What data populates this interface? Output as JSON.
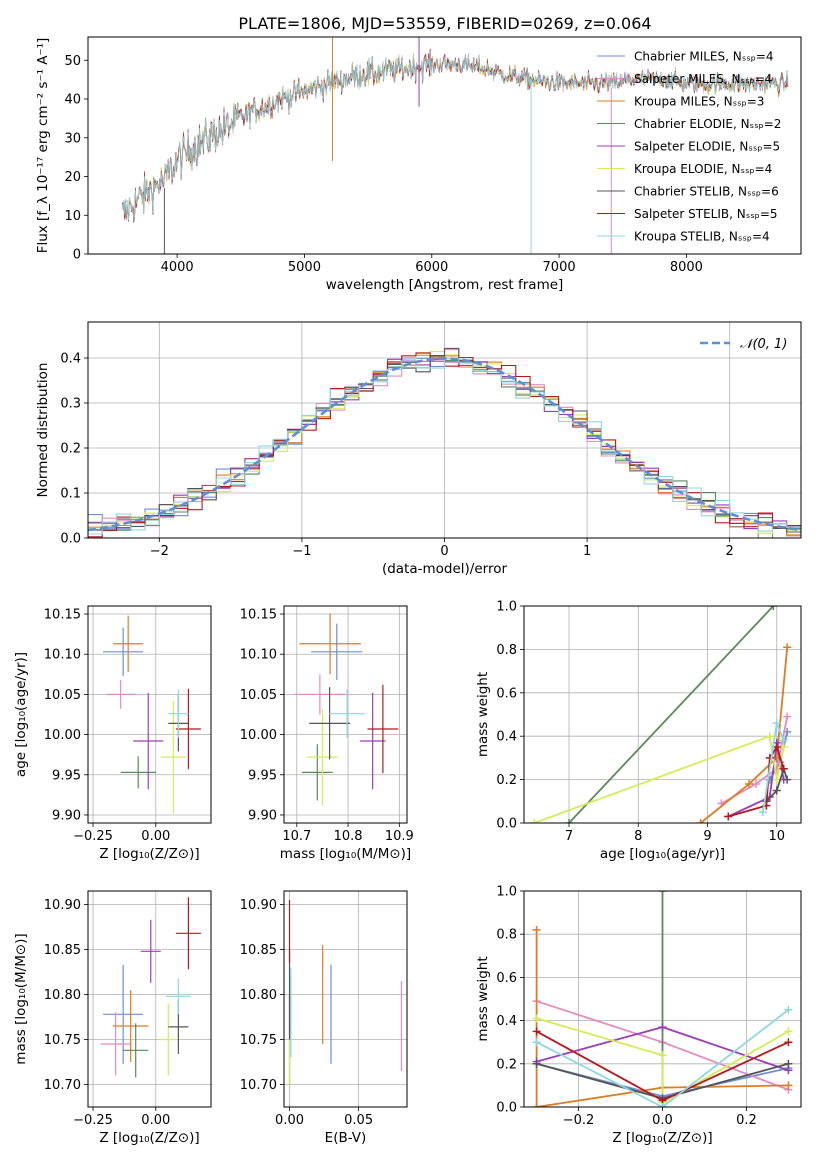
{
  "figure": {
    "title": "PLATE=1806, MJD=53559, FIBERID=0269, z=0.064"
  },
  "colors": {
    "series": [
      "#6b8fd6",
      "#e58bc3",
      "#e07b22",
      "#5a8a5a",
      "#9a3fb8",
      "#d4ec57",
      "#555555",
      "#b5181f",
      "#8dd8e0"
    ],
    "normal": "#5b8fd8",
    "grid": "#b0b0b0"
  },
  "chart_data": [
    {
      "id": "spectrum",
      "type": "line",
      "title": "PLATE=1806, MJD=53559, FIBERID=0269, z=0.064",
      "xlabel": "wavelength [Angstrom, rest frame]",
      "ylabel": "Flux [f_λ 10⁻¹⁷ erg cm⁻² s⁻¹ A⁻¹]",
      "xlim": [
        3300,
        8900
      ],
      "ylim": [
        0,
        56
      ],
      "xticks": [
        4000,
        5000,
        6000,
        7000,
        8000
      ],
      "yticks": [
        0,
        10,
        20,
        30,
        40,
        50
      ],
      "grid": false,
      "legend_position": "top-right",
      "legend": [
        "Chabrier MILES, N_SSP=4",
        "Salpeter MILES, N_SSP=4",
        "Kroupa MILES, N_SSP=3",
        "Chabrier ELODIE, N_SSP=2",
        "Salpeter ELODIE, N_SSP=5",
        "Kroupa ELODIE, N_SSP=4",
        "Chabrier STELIB, N_SSP=6",
        "Salpeter STELIB, N_SSP=5",
        "Kroupa STELIB, N_SSP=4"
      ],
      "continuum": {
        "x": [
          3570,
          3700,
          3800,
          3900,
          4000,
          4100,
          4200,
          4300,
          4400,
          4500,
          4600,
          4700,
          4800,
          4900,
          5000,
          5200,
          5400,
          5600,
          5800,
          6000,
          6200,
          6400,
          6600,
          6800,
          7000,
          7200,
          7400,
          7600,
          7800,
          8000,
          8200,
          8400,
          8600,
          8800
        ],
        "y": [
          10,
          14,
          17,
          19,
          24,
          27,
          29,
          31,
          33,
          35,
          37,
          38,
          40,
          41,
          42,
          44,
          46,
          47,
          48,
          49,
          49,
          48,
          46,
          45,
          44,
          44,
          44,
          45,
          45,
          44,
          44,
          44,
          44,
          44
        ]
      },
      "spikes": [
        {
          "x": 5220,
          "ylow": 24,
          "yhigh": 56
        },
        {
          "x": 5900,
          "ylow": 38,
          "yhigh": 56
        },
        {
          "x": 3900,
          "ylow": 0,
          "yhigh": 17
        },
        {
          "x": 6780,
          "ylow": 0,
          "yhigh": 45
        },
        {
          "x": 7410,
          "ylow": 0,
          "yhigh": 43
        }
      ]
    },
    {
      "id": "residuals",
      "type": "line",
      "xlabel": "(data-model)/error",
      "ylabel": "Normed distribution",
      "xlim": [
        -2.5,
        2.5
      ],
      "ylim": [
        0,
        0.48
      ],
      "xticks": [
        -2,
        -1,
        0,
        1,
        2
      ],
      "yticks": [
        0.0,
        0.1,
        0.2,
        0.3,
        0.4
      ],
      "grid": true,
      "legend_position": "top-right",
      "legend": [
        "𝒩(0, 1)"
      ],
      "bin_width": 0.1
    },
    {
      "id": "age-vs-Z",
      "type": "scatter",
      "xlabel": "Z [log₁₀(Z/Z⊙)]",
      "ylabel": "age  [log₁₀(age/yr)]",
      "xlim": [
        -0.27,
        0.22
      ],
      "ylim": [
        9.89,
        10.16
      ],
      "xticks": [
        -0.25,
        0.0,
        0.25
      ],
      "yticks": [
        9.9,
        9.95,
        10.0,
        10.05,
        10.1,
        10.15
      ],
      "grid": true,
      "points": [
        {
          "x": -0.13,
          "y": 10.103,
          "xerr": 0.08,
          "yerr": 0.03
        },
        {
          "x": -0.14,
          "y": 10.05,
          "xerr": 0.06,
          "yerr": 0.018
        },
        {
          "x": -0.11,
          "y": 10.113,
          "xerr": 0.06,
          "yerr": 0.035
        },
        {
          "x": -0.07,
          "y": 9.953,
          "xerr": 0.07,
          "yerr": 0.02
        },
        {
          "x": -0.03,
          "y": 9.992,
          "xerr": 0.06,
          "yerr": 0.06
        },
        {
          "x": 0.07,
          "y": 9.972,
          "xerr": 0.05,
          "yerr": 0.07
        },
        {
          "x": 0.09,
          "y": 10.014,
          "xerr": 0.04,
          "yerr": 0.035
        },
        {
          "x": 0.13,
          "y": 10.007,
          "xerr": 0.05,
          "yerr": 0.05
        },
        {
          "x": 0.09,
          "y": 10.026,
          "xerr": 0.04,
          "yerr": 0.03
        }
      ]
    },
    {
      "id": "age-vs-mass",
      "type": "scatter",
      "xlabel": "mass [log₁₀(M/M⊙)]",
      "ylabel": "",
      "xlim": [
        10.675,
        10.915
      ],
      "ylim": [
        9.89,
        10.16
      ],
      "xticks": [
        10.7,
        10.8,
        10.9
      ],
      "yticks": [
        9.9,
        9.95,
        10.0,
        10.05,
        10.1,
        10.15
      ],
      "grid": true,
      "points": [
        {
          "x": 10.778,
          "y": 10.103,
          "xerr": 0.05,
          "yerr": 0.035
        },
        {
          "x": 10.745,
          "y": 10.05,
          "xerr": 0.05,
          "yerr": 0.025
        },
        {
          "x": 10.765,
          "y": 10.113,
          "xerr": 0.06,
          "yerr": 0.038
        },
        {
          "x": 10.74,
          "y": 9.953,
          "xerr": 0.03,
          "yerr": 0.035
        },
        {
          "x": 10.848,
          "y": 9.992,
          "xerr": 0.025,
          "yerr": 0.06
        },
        {
          "x": 10.75,
          "y": 9.972,
          "xerr": 0.03,
          "yerr": 0.06
        },
        {
          "x": 10.764,
          "y": 10.014,
          "xerr": 0.04,
          "yerr": 0.045
        },
        {
          "x": 10.868,
          "y": 10.007,
          "xerr": 0.03,
          "yerr": 0.055
        },
        {
          "x": 10.798,
          "y": 10.026,
          "xerr": 0.035,
          "yerr": 0.03
        }
      ]
    },
    {
      "id": "weight-vs-age",
      "type": "line",
      "xlabel": "age  [log₁₀(age/yr)]",
      "ylabel": "mass weight",
      "xlim": [
        6.35,
        10.35
      ],
      "ylim": [
        0,
        1
      ],
      "xticks": [
        7,
        8,
        9,
        10
      ],
      "yticks": [
        0.0,
        0.2,
        0.4,
        0.6,
        0.8,
        1.0
      ],
      "grid": true,
      "series": [
        {
          "points": [
            [
              9.9,
              0.2
            ],
            [
              10.05,
              0.28
            ],
            [
              10.15,
              0.42
            ]
          ]
        },
        {
          "points": [
            [
              9.2,
              0.09
            ],
            [
              9.7,
              0.18
            ],
            [
              10.0,
              0.25
            ],
            [
              10.15,
              0.49
            ]
          ]
        },
        {
          "points": [
            [
              8.9,
              0.0
            ],
            [
              9.6,
              0.18
            ],
            [
              10.0,
              0.3
            ],
            [
              10.15,
              0.81
            ]
          ]
        },
        {
          "points": [
            [
              7.0,
              0.0
            ],
            [
              9.95,
              1.0
            ]
          ]
        },
        {
          "points": [
            [
              9.3,
              0.03
            ],
            [
              9.9,
              0.12
            ],
            [
              10.0,
              0.37
            ],
            [
              10.1,
              0.2
            ]
          ]
        },
        {
          "points": [
            [
              6.5,
              0.0
            ],
            [
              9.9,
              0.4
            ],
            [
              10.0,
              0.2
            ],
            [
              10.1,
              0.35
            ]
          ]
        },
        {
          "points": [
            [
              9.85,
              0.1
            ],
            [
              10.0,
              0.15
            ],
            [
              10.1,
              0.25
            ],
            [
              10.15,
              0.2
            ]
          ]
        },
        {
          "points": [
            [
              9.3,
              0.03
            ],
            [
              9.85,
              0.08
            ],
            [
              9.9,
              0.3
            ],
            [
              10.0,
              0.35
            ],
            [
              10.1,
              0.25
            ]
          ]
        },
        {
          "points": [
            [
              9.8,
              0.05
            ],
            [
              10.0,
              0.46
            ],
            [
              10.1,
              0.38
            ]
          ]
        }
      ]
    },
    {
      "id": "mass-vs-Z",
      "type": "scatter",
      "xlabel": "Z [log₁₀(Z/Z⊙)]",
      "ylabel": "mass [log₁₀(M/M⊙)]",
      "xlim": [
        -0.27,
        0.22
      ],
      "ylim": [
        10.675,
        10.915
      ],
      "xticks": [
        -0.25,
        0.0,
        0.25
      ],
      "yticks": [
        10.7,
        10.75,
        10.8,
        10.85,
        10.9
      ],
      "grid": true,
      "points": [
        {
          "x": -0.13,
          "y": 10.778,
          "xerr": 0.08,
          "yerr": 0.055
        },
        {
          "x": -0.16,
          "y": 10.745,
          "xerr": 0.06,
          "yerr": 0.035
        },
        {
          "x": -0.1,
          "y": 10.765,
          "xerr": 0.07,
          "yerr": 0.04
        },
        {
          "x": -0.08,
          "y": 10.738,
          "xerr": 0.05,
          "yerr": 0.03
        },
        {
          "x": -0.02,
          "y": 10.848,
          "xerr": 0.04,
          "yerr": 0.035
        },
        {
          "x": 0.05,
          "y": 10.75,
          "xerr": 0.04,
          "yerr": 0.04
        },
        {
          "x": 0.09,
          "y": 10.764,
          "xerr": 0.04,
          "yerr": 0.03
        },
        {
          "x": 0.13,
          "y": 10.868,
          "xerr": 0.05,
          "yerr": 0.04
        },
        {
          "x": 0.09,
          "y": 10.798,
          "xerr": 0.05,
          "yerr": 0.02
        }
      ]
    },
    {
      "id": "mass-vs-ebv",
      "type": "scatter",
      "xlabel": "E(B-V)",
      "ylabel": "",
      "xlim": [
        -0.004,
        0.085
      ],
      "ylim": [
        10.675,
        10.915
      ],
      "xticks": [
        0.0,
        0.05
      ],
      "yticks": [
        10.7,
        10.75,
        10.8,
        10.85,
        10.9
      ],
      "grid": true,
      "points": [
        {
          "x": 0.03,
          "y": 10.778,
          "yerr": 0.055
        },
        {
          "x": 0.081,
          "y": 10.765,
          "yerr": 0.05
        },
        {
          "x": 0.024,
          "y": 10.8,
          "yerr": 0.055
        },
        {
          "x": 0.001,
          "y": 10.79,
          "yerr": 0.03
        },
        {
          "x": 0.0,
          "y": 10.75,
          "yerr": 0.05
        },
        {
          "x": 0.0,
          "y": 10.75,
          "yerr": 0.05
        },
        {
          "x": 0.0,
          "y": 10.8,
          "yerr": 0.05
        },
        {
          "x": 0.0,
          "y": 10.87,
          "yerr": 0.035
        },
        {
          "x": 0.001,
          "y": 10.78,
          "yerr": 0.05
        }
      ]
    },
    {
      "id": "weight-vs-Z",
      "type": "line",
      "xlabel": "Z [log₁₀(Z/Z⊙)]",
      "ylabel": "mass weight",
      "xlim": [
        -0.33,
        0.33
      ],
      "ylim": [
        0,
        1
      ],
      "xticks": [
        -0.2,
        0.0,
        0.2
      ],
      "yticks": [
        0.0,
        0.2,
        0.4,
        0.6,
        0.8,
        1.0
      ],
      "grid": true,
      "series": [
        {
          "points": [
            [
              -0.3,
              0.2
            ],
            [
              0.0,
              0.05
            ],
            [
              0.3,
              0.18
            ]
          ]
        },
        {
          "points": [
            [
              -0.3,
              0.49
            ],
            [
              0.0,
              0.3
            ],
            [
              0.3,
              0.08
            ]
          ]
        },
        {
          "points": [
            [
              -0.3,
              0.82
            ],
            [
              -0.3,
              0.0
            ],
            [
              0.0,
              0.09
            ],
            [
              0.3,
              0.1
            ]
          ]
        },
        {
          "points": [
            [
              0.0,
              1.0
            ],
            [
              0.0,
              0.0
            ]
          ]
        },
        {
          "points": [
            [
              -0.3,
              0.21
            ],
            [
              0.0,
              0.37
            ],
            [
              0.3,
              0.17
            ]
          ]
        },
        {
          "points": [
            [
              -0.3,
              0.41
            ],
            [
              0.0,
              0.24
            ],
            [
              0.0,
              0.02
            ],
            [
              0.3,
              0.35
            ]
          ]
        },
        {
          "points": [
            [
              -0.3,
              0.2
            ],
            [
              0.0,
              0.04
            ],
            [
              0.3,
              0.2
            ]
          ]
        },
        {
          "points": [
            [
              -0.3,
              0.35
            ],
            [
              0.0,
              0.03
            ],
            [
              0.3,
              0.3
            ]
          ]
        },
        {
          "points": [
            [
              -0.3,
              0.3
            ],
            [
              0.0,
              0.0
            ],
            [
              0.3,
              0.45
            ]
          ]
        }
      ]
    }
  ]
}
